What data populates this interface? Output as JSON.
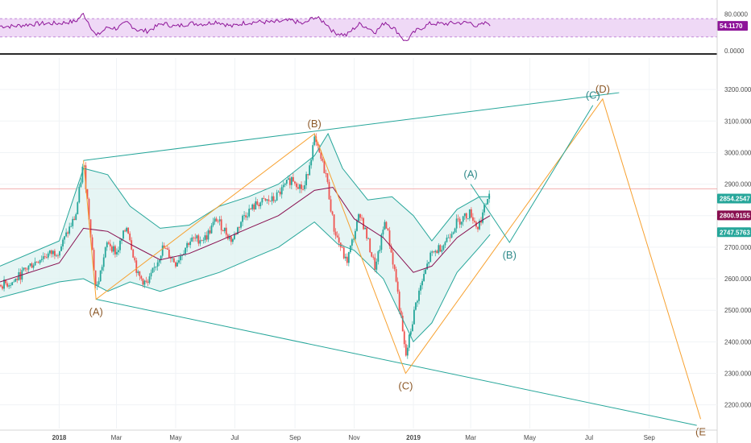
{
  "chart_data": [
    {
      "type": "line",
      "panel": "rsi",
      "ylim": [
        0,
        100
      ],
      "ticks": [
        "80.0000",
        "0.0000"
      ],
      "tick_values": [
        80,
        0
      ],
      "band": [
        30,
        70
      ],
      "current_value": 54.117,
      "current_label": "54.1170",
      "colors": {
        "line": "#8e1599",
        "band": "#d9b3ec",
        "tag": "#8e1599",
        "lines": "#9c27b0"
      }
    },
    {
      "type": "line",
      "panel": "price",
      "ylim": [
        2125,
        3300
      ],
      "y_ticks": [
        "3200.0000",
        "3100.0000",
        "3000.0000",
        "2900.0000",
        "2800.0000",
        "2700.0000",
        "2600.0000",
        "2500.0000",
        "2400.0000",
        "2300.0000",
        "2200.0000"
      ],
      "y_tick_values": [
        3200,
        3100,
        3000,
        2900,
        2800,
        2700,
        2600,
        2500,
        2400,
        2300,
        2200
      ],
      "x_ticks": [
        "2018",
        "Mar",
        "May",
        "Jul",
        "Sep",
        "Nov",
        "2019",
        "Mar",
        "May",
        "Jul",
        "Sep"
      ],
      "x_tick_values": [
        "2018-01-01",
        "2018-03-01",
        "2018-05-01",
        "2018-07-01",
        "2018-09-01",
        "2018-11-01",
        "2019-01-01",
        "2019-03-01",
        "2019-05-01",
        "2019-07-01",
        "2019-09-01"
      ],
      "xlim": [
        "2017-11-01",
        "2019-11-10"
      ],
      "horizontal_line": 2885,
      "price_tags": [
        {
          "value": 2854.2547,
          "label": "2854.2547",
          "color": "#26a69a"
        },
        {
          "value": 2800.9155,
          "label": "2800.9155",
          "color": "#880e4f"
        },
        {
          "value": 2747.5763,
          "label": "2747.5763",
          "color": "#26a69a"
        }
      ],
      "channel_lines": [
        {
          "points": [
            [
              "2018-01-26",
              2975
            ],
            [
              "2019-08-01",
              3190
            ]
          ],
          "color": "#26a69a"
        },
        {
          "points": [
            [
              "2018-02-08",
              2535
            ],
            [
              "2019-10-20",
              2135
            ]
          ],
          "color": "#26a69a"
        }
      ],
      "wave_lines": [
        {
          "color": "#f7a130",
          "points": [
            [
              "2018-01-26",
              2975
            ],
            [
              "2018-02-08",
              2535
            ],
            [
              "2018-09-21",
              3060
            ],
            [
              "2018-12-24",
              2300
            ],
            [
              "2019-07-15",
              3170
            ],
            [
              "2019-10-24",
              2155
            ]
          ]
        },
        {
          "color": "#26a69a",
          "points": [
            [
              "2019-03-01",
              2900
            ],
            [
              "2019-04-10",
              2715
            ],
            [
              "2019-07-05",
              3150
            ]
          ]
        }
      ],
      "wave_labels": [
        {
          "text": "(A)",
          "date": "2018-02-08",
          "value": 2535,
          "color": "#8d5a2a",
          "pos": "below"
        },
        {
          "text": "(B)",
          "date": "2018-09-21",
          "value": 3060,
          "color": "#8d5a2a",
          "pos": "above"
        },
        {
          "text": "(C)",
          "date": "2018-12-24",
          "value": 2300,
          "color": "#8d5a2a",
          "pos": "below"
        },
        {
          "text": "(A)",
          "date": "2019-03-01",
          "value": 2900,
          "color": "#2f8a8a",
          "pos": "above"
        },
        {
          "text": "(B)",
          "date": "2019-04-10",
          "value": 2715,
          "color": "#2f8a8a",
          "pos": "below"
        },
        {
          "text": "(C)",
          "date": "2019-07-05",
          "value": 3150,
          "color": "#2f8a8a",
          "pos": "above"
        },
        {
          "text": "(D)",
          "date": "2019-07-15",
          "value": 3170,
          "color": "#8d5a2a",
          "pos": "above"
        },
        {
          "text": "(E",
          "date": "2019-10-24",
          "value": 2155,
          "color": "#8d5a2a",
          "pos": "below"
        }
      ],
      "series": [
        {
          "role": "price",
          "color": "#ef5350",
          "points": [
            [
              "2017-11-01",
              2580
            ],
            [
              "2017-11-15",
              2590
            ],
            [
              "2017-12-01",
              2640
            ],
            [
              "2017-12-15",
              2670
            ],
            [
              "2018-01-01",
              2690
            ],
            [
              "2018-01-10",
              2750
            ],
            [
              "2018-01-18",
              2800
            ],
            [
              "2018-01-26",
              2970
            ],
            [
              "2018-02-02",
              2760
            ],
            [
              "2018-02-08",
              2560
            ],
            [
              "2018-02-20",
              2720
            ],
            [
              "2018-03-01",
              2680
            ],
            [
              "2018-03-12",
              2770
            ],
            [
              "2018-03-23",
              2610
            ],
            [
              "2018-04-02",
              2580
            ],
            [
              "2018-04-18",
              2700
            ],
            [
              "2018-05-01",
              2650
            ],
            [
              "2018-05-15",
              2720
            ],
            [
              "2018-06-01",
              2730
            ],
            [
              "2018-06-12",
              2790
            ],
            [
              "2018-06-28",
              2720
            ],
            [
              "2018-07-10",
              2800
            ],
            [
              "2018-07-25",
              2840
            ],
            [
              "2018-08-10",
              2850
            ],
            [
              "2018-08-29",
              2920
            ],
            [
              "2018-09-10",
              2880
            ],
            [
              "2018-09-21",
              3040
            ],
            [
              "2018-10-03",
              2930
            ],
            [
              "2018-10-11",
              2760
            ],
            [
              "2018-10-24",
              2650
            ],
            [
              "2018-11-07",
              2810
            ],
            [
              "2018-11-23",
              2630
            ],
            [
              "2018-12-03",
              2790
            ],
            [
              "2018-12-14",
              2600
            ],
            [
              "2018-12-24",
              2350
            ],
            [
              "2019-01-04",
              2530
            ],
            [
              "2019-01-18",
              2670
            ],
            [
              "2019-02-01",
              2710
            ],
            [
              "2019-02-15",
              2780
            ],
            [
              "2019-03-01",
              2810
            ],
            [
              "2019-03-08",
              2760
            ],
            [
              "2019-03-15",
              2820
            ],
            [
              "2019-03-21",
              2880
            ]
          ]
        },
        {
          "role": "upper-band",
          "color": "#26a69a",
          "points": [
            [
              "2017-11-01",
              2640
            ],
            [
              "2018-01-01",
              2720
            ],
            [
              "2018-01-26",
              2950
            ],
            [
              "2018-02-20",
              2930
            ],
            [
              "2018-03-15",
              2830
            ],
            [
              "2018-04-15",
              2760
            ],
            [
              "2018-05-15",
              2770
            ],
            [
              "2018-06-15",
              2830
            ],
            [
              "2018-07-15",
              2860
            ],
            [
              "2018-08-15",
              2900
            ],
            [
              "2018-09-21",
              2990
            ],
            [
              "2018-10-05",
              3060
            ],
            [
              "2018-10-20",
              2950
            ],
            [
              "2018-11-15",
              2850
            ],
            [
              "2018-12-10",
              2860
            ],
            [
              "2019-01-01",
              2800
            ],
            [
              "2019-01-20",
              2720
            ],
            [
              "2019-02-15",
              2820
            ],
            [
              "2019-03-10",
              2860
            ],
            [
              "2019-03-21",
              2860
            ]
          ]
        },
        {
          "role": "middle-band",
          "color": "#880e4f",
          "points": [
            [
              "2017-11-01",
              2590
            ],
            [
              "2018-01-01",
              2650
            ],
            [
              "2018-01-26",
              2760
            ],
            [
              "2018-02-20",
              2750
            ],
            [
              "2018-03-15",
              2710
            ],
            [
              "2018-04-15",
              2660
            ],
            [
              "2018-05-15",
              2680
            ],
            [
              "2018-06-15",
              2720
            ],
            [
              "2018-07-15",
              2760
            ],
            [
              "2018-08-15",
              2800
            ],
            [
              "2018-09-21",
              2880
            ],
            [
              "2018-10-10",
              2890
            ],
            [
              "2018-11-01",
              2790
            ],
            [
              "2018-12-01",
              2730
            ],
            [
              "2019-01-01",
              2620
            ],
            [
              "2019-01-20",
              2640
            ],
            [
              "2019-02-15",
              2730
            ],
            [
              "2019-03-10",
              2780
            ],
            [
              "2019-03-21",
              2800
            ]
          ]
        },
        {
          "role": "lower-band",
          "color": "#26a69a",
          "points": [
            [
              "2017-11-01",
              2540
            ],
            [
              "2018-01-01",
              2590
            ],
            [
              "2018-01-26",
              2600
            ],
            [
              "2018-02-20",
              2560
            ],
            [
              "2018-03-15",
              2590
            ],
            [
              "2018-04-15",
              2560
            ],
            [
              "2018-05-15",
              2590
            ],
            [
              "2018-06-15",
              2620
            ],
            [
              "2018-07-15",
              2660
            ],
            [
              "2018-08-15",
              2700
            ],
            [
              "2018-09-21",
              2780
            ],
            [
              "2018-10-15",
              2710
            ],
            [
              "2018-11-01",
              2690
            ],
            [
              "2018-12-01",
              2600
            ],
            [
              "2019-01-01",
              2400
            ],
            [
              "2019-01-20",
              2460
            ],
            [
              "2019-02-15",
              2620
            ],
            [
              "2019-03-10",
              2700
            ],
            [
              "2019-03-21",
              2740
            ]
          ]
        }
      ]
    }
  ]
}
